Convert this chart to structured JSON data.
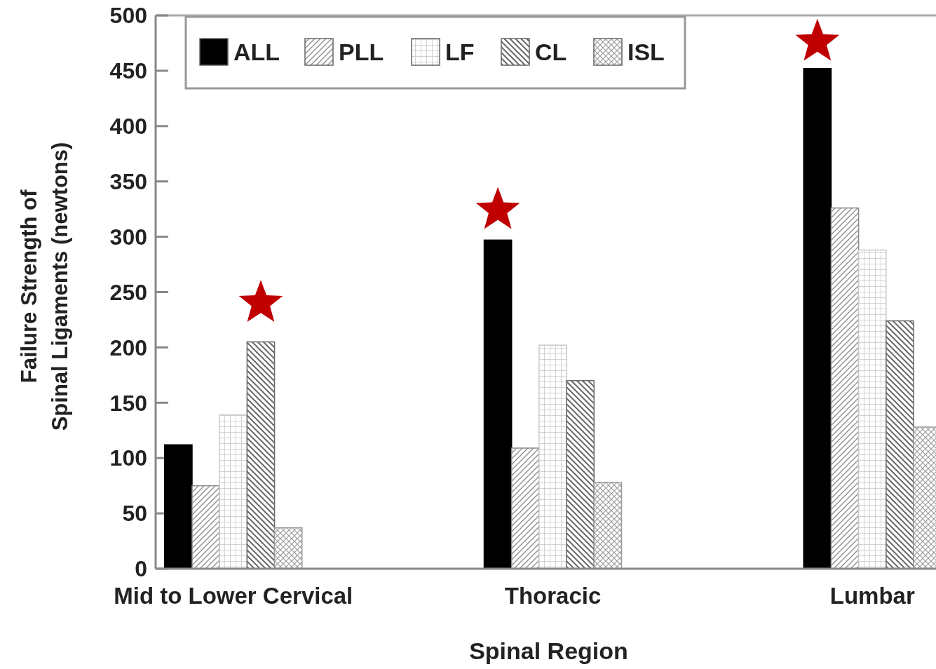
{
  "chart_data": {
    "type": "bar",
    "xlabel": "Spinal Region",
    "ylabel": "Failure Strength of\nSpinal Ligaments (newtons)",
    "categories": [
      "Mid to Lower Cervical",
      "Thoracic",
      "Lumbar"
    ],
    "ylim": [
      0,
      500
    ],
    "yticks": [
      0,
      50,
      100,
      150,
      200,
      250,
      300,
      350,
      400,
      450,
      500
    ],
    "legend": "top left",
    "series": [
      {
        "name": "ALL",
        "color": "#000000",
        "values": [
          112,
          297,
          452
        ]
      },
      {
        "name": "PLL",
        "color": "#8a8a8a",
        "values": [
          75,
          109,
          326
        ]
      },
      {
        "name": "LF",
        "color": "#c8c8c8",
        "values": [
          139,
          202,
          288
        ]
      },
      {
        "name": "CL",
        "color": "#6a6a6a",
        "values": [
          205,
          170,
          224
        ]
      },
      {
        "name": "ISL",
        "color": "#9a9a9a",
        "values": [
          37,
          78,
          128
        ]
      },
      {
        "type": "scatter",
        "marker": "star",
        "color": "#c00000",
        "x": [
          "Mid to Lower Cervical",
          "Thoracic",
          "Lumbar"
        ],
        "values": [
          240,
          324,
          476
        ]
      }
    ]
  }
}
